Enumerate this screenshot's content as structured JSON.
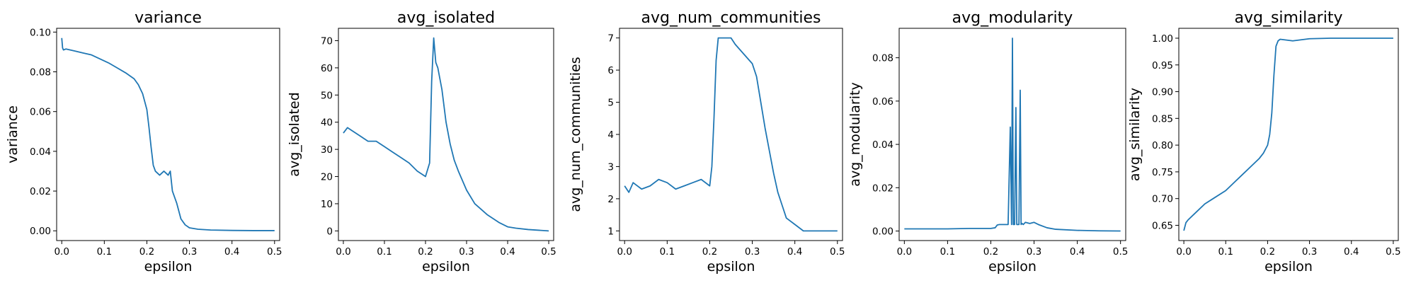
{
  "chart_data": [
    {
      "type": "line",
      "title": "variance",
      "xlabel": "epsilon",
      "ylabel": "variance",
      "xlim": [
        -0.012,
        0.512
      ],
      "ylim": [
        -0.0049,
        0.1019
      ],
      "xticks": [
        0.0,
        0.1,
        0.2,
        0.3,
        0.4,
        0.5
      ],
      "xtick_labels": [
        "0.0",
        "0.1",
        "0.2",
        "0.3",
        "0.4",
        "0.5"
      ],
      "yticks": [
        0.0,
        0.02,
        0.04,
        0.06,
        0.08,
        0.1
      ],
      "ytick_labels": [
        "0.00",
        "0.02",
        "0.04",
        "0.06",
        "0.08",
        "0.10"
      ],
      "color": "#1f77b4",
      "x": [
        0.0,
        0.002,
        0.004,
        0.01,
        0.03,
        0.05,
        0.07,
        0.09,
        0.11,
        0.13,
        0.15,
        0.17,
        0.18,
        0.19,
        0.2,
        0.205,
        0.21,
        0.215,
        0.22,
        0.23,
        0.24,
        0.25,
        0.255,
        0.26,
        0.27,
        0.28,
        0.29,
        0.3,
        0.32,
        0.35,
        0.4,
        0.45,
        0.5
      ],
      "y": [
        0.097,
        0.092,
        0.091,
        0.0915,
        0.0905,
        0.0895,
        0.0885,
        0.0865,
        0.0845,
        0.082,
        0.0795,
        0.0765,
        0.0735,
        0.069,
        0.061,
        0.052,
        0.042,
        0.033,
        0.03,
        0.028,
        0.03,
        0.028,
        0.03,
        0.02,
        0.014,
        0.006,
        0.003,
        0.0015,
        0.0008,
        0.0004,
        0.0002,
        0.0001,
        0.0001
      ]
    },
    {
      "type": "line",
      "title": "avg_isolated",
      "xlabel": "epsilon",
      "ylabel": "avg_isolated",
      "xlim": [
        -0.012,
        0.512
      ],
      "ylim": [
        -3.55,
        74.55
      ],
      "xticks": [
        0.0,
        0.1,
        0.2,
        0.3,
        0.4,
        0.5
      ],
      "xtick_labels": [
        "0.0",
        "0.1",
        "0.2",
        "0.3",
        "0.4",
        "0.5"
      ],
      "yticks": [
        0,
        10,
        20,
        30,
        40,
        50,
        60,
        70
      ],
      "ytick_labels": [
        "0",
        "10",
        "20",
        "30",
        "40",
        "50",
        "60",
        "70"
      ],
      "color": "#1f77b4",
      "x": [
        0.0,
        0.01,
        0.02,
        0.04,
        0.06,
        0.08,
        0.1,
        0.12,
        0.14,
        0.16,
        0.18,
        0.2,
        0.21,
        0.215,
        0.22,
        0.225,
        0.23,
        0.24,
        0.25,
        0.26,
        0.27,
        0.28,
        0.3,
        0.32,
        0.35,
        0.38,
        0.4,
        0.42,
        0.45,
        0.5
      ],
      "y": [
        36,
        38,
        37,
        35,
        33,
        33,
        31,
        29,
        27,
        25,
        22,
        20,
        25,
        55,
        71,
        62,
        60,
        52,
        40,
        32,
        26,
        22,
        15,
        10,
        6,
        3,
        1.5,
        1,
        0.5,
        0
      ]
    },
    {
      "type": "line",
      "title": "avg_num_communities",
      "xlabel": "epsilon",
      "ylabel": "avg_num_communities",
      "xlim": [
        -0.012,
        0.512
      ],
      "ylim": [
        0.7,
        7.3
      ],
      "xticks": [
        0.0,
        0.1,
        0.2,
        0.3,
        0.4,
        0.5
      ],
      "xtick_labels": [
        "0.0",
        "0.1",
        "0.2",
        "0.3",
        "0.4",
        "0.5"
      ],
      "yticks": [
        1,
        2,
        3,
        4,
        5,
        6,
        7
      ],
      "ytick_labels": [
        "1",
        "2",
        "3",
        "4",
        "5",
        "6",
        "7"
      ],
      "color": "#1f77b4",
      "x": [
        0.0,
        0.01,
        0.02,
        0.04,
        0.06,
        0.08,
        0.1,
        0.12,
        0.14,
        0.16,
        0.18,
        0.2,
        0.205,
        0.21,
        0.215,
        0.22,
        0.25,
        0.26,
        0.28,
        0.3,
        0.31,
        0.32,
        0.33,
        0.34,
        0.35,
        0.36,
        0.37,
        0.38,
        0.4,
        0.42,
        0.45,
        0.46,
        0.5
      ],
      "y": [
        2.4,
        2.2,
        2.5,
        2.3,
        2.4,
        2.6,
        2.5,
        2.3,
        2.4,
        2.5,
        2.6,
        2.4,
        3.0,
        4.5,
        6.3,
        7.0,
        7.0,
        6.8,
        6.5,
        6.2,
        5.8,
        5.0,
        4.2,
        3.5,
        2.8,
        2.2,
        1.8,
        1.4,
        1.2,
        1.0,
        1.0,
        1.0,
        1.0
      ]
    },
    {
      "type": "line",
      "title": "avg_modularity",
      "xlabel": "epsilon",
      "ylabel": "avg_modularity",
      "xlim": [
        -0.012,
        0.512
      ],
      "ylim": [
        -0.0044,
        0.0936
      ],
      "xticks": [
        0.0,
        0.1,
        0.2,
        0.3,
        0.4,
        0.5
      ],
      "xtick_labels": [
        "0.0",
        "0.1",
        "0.2",
        "0.3",
        "0.4",
        "0.5"
      ],
      "yticks": [
        0.0,
        0.02,
        0.04,
        0.06,
        0.08
      ],
      "ytick_labels": [
        "0.00",
        "0.02",
        "0.04",
        "0.06",
        "0.08"
      ],
      "color": "#1f77b4",
      "x": [
        0.0,
        0.05,
        0.1,
        0.15,
        0.2,
        0.21,
        0.215,
        0.22,
        0.24,
        0.245,
        0.248,
        0.25,
        0.252,
        0.255,
        0.258,
        0.26,
        0.262,
        0.265,
        0.268,
        0.27,
        0.272,
        0.275,
        0.28,
        0.29,
        0.3,
        0.31,
        0.33,
        0.35,
        0.4,
        0.45,
        0.5
      ],
      "y": [
        0.001,
        0.001,
        0.001,
        0.0012,
        0.0012,
        0.0015,
        0.0028,
        0.003,
        0.003,
        0.048,
        0.003,
        0.089,
        0.003,
        0.003,
        0.057,
        0.003,
        0.003,
        0.003,
        0.065,
        0.003,
        0.0035,
        0.003,
        0.004,
        0.0035,
        0.004,
        0.003,
        0.0015,
        0.0008,
        0.0003,
        0.0001,
        0.0
      ]
    },
    {
      "type": "line",
      "title": "avg_similarity",
      "xlabel": "epsilon",
      "ylabel": "avg_similarity",
      "xlim": [
        -0.012,
        0.512
      ],
      "ylim": [
        0.6215,
        1.0185
      ],
      "xticks": [
        0.0,
        0.1,
        0.2,
        0.3,
        0.4,
        0.5
      ],
      "xtick_labels": [
        "0.0",
        "0.1",
        "0.2",
        "0.3",
        "0.4",
        "0.5"
      ],
      "yticks": [
        0.65,
        0.7,
        0.75,
        0.8,
        0.85,
        0.9,
        0.95,
        1.0
      ],
      "ytick_labels": [
        "0.65",
        "0.70",
        "0.75",
        "0.80",
        "0.85",
        "0.90",
        "0.95",
        "1.00"
      ],
      "color": "#1f77b4",
      "x": [
        0.0,
        0.005,
        0.01,
        0.03,
        0.05,
        0.07,
        0.1,
        0.12,
        0.14,
        0.16,
        0.18,
        0.19,
        0.2,
        0.205,
        0.21,
        0.215,
        0.22,
        0.225,
        0.23,
        0.24,
        0.26,
        0.28,
        0.3,
        0.35,
        0.4,
        0.5
      ],
      "y": [
        0.64,
        0.655,
        0.66,
        0.675,
        0.69,
        0.7,
        0.715,
        0.73,
        0.745,
        0.76,
        0.775,
        0.785,
        0.8,
        0.82,
        0.86,
        0.93,
        0.985,
        0.995,
        0.998,
        0.997,
        0.995,
        0.997,
        0.999,
        1.0,
        1.0,
        1.0
      ]
    }
  ]
}
